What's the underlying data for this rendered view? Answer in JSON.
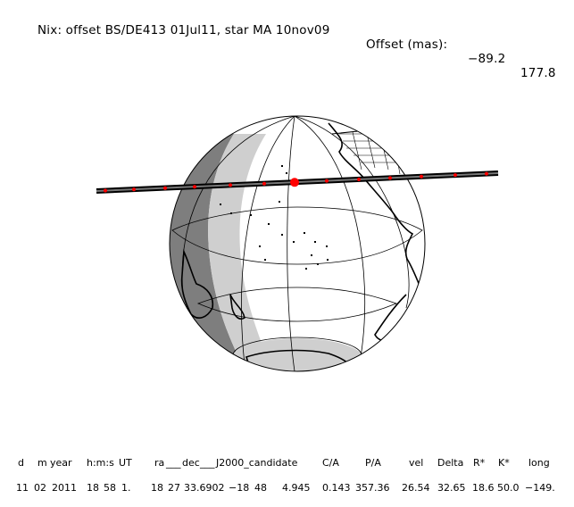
{
  "header": {
    "label": "Nix: offset BS/DE413 01Jul11, star MA 10nov09",
    "offset_label": "Offset (mas):",
    "offset_x": "−89.2",
    "offset_y": "177.8"
  },
  "table": {
    "headers": [
      "d",
      "m",
      "year",
      "h:m:s",
      "UT",
      "ra",
      "dec",
      "J2000_candidate",
      "C/A",
      "P/A",
      "vel",
      "Delta",
      "R*",
      "K*",
      "long"
    ],
    "values": [
      "11",
      "02",
      "2011",
      "18",
      "58",
      "1.",
      "18",
      "27",
      "33.6902",
      "−18",
      "48",
      "4.945",
      "0.143",
      "357.36",
      "26.54",
      "32.65",
      "18.6",
      "50.0",
      "−149."
    ],
    "sep1": "___",
    "sep2": "___"
  }
}
